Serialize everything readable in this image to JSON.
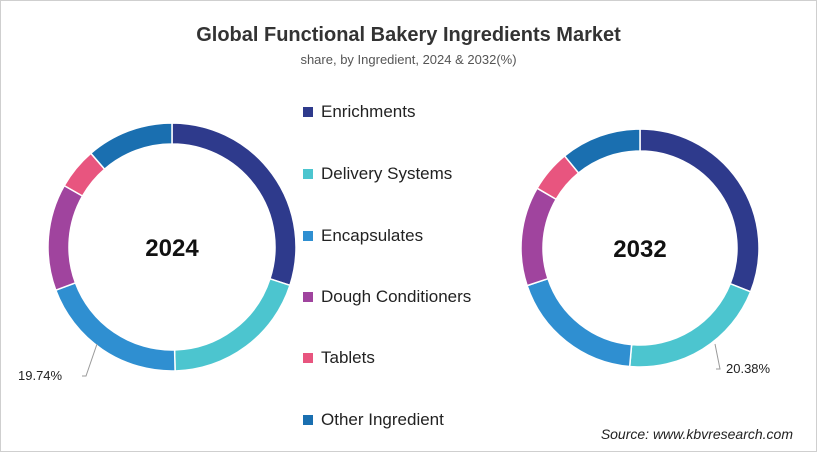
{
  "title": "Global Functional Bakery Ingredients Market",
  "subtitle": "share, by Ingredient, 2024 & 2032(%)",
  "source": "Source: www.kbvresearch.com",
  "colors": {
    "Enrichments": "#2e3a8c",
    "Delivery Systems": "#4cc5cf",
    "Encapsulates": "#2f8fd1",
    "Dough Conditioners": "#a0449e",
    "Tablets": "#e8557f",
    "Other Ingredient": "#1a6fb0"
  },
  "legend": [
    "Enrichments",
    "Delivery Systems",
    "Encapsulates",
    "Dough Conditioners",
    "Tablets",
    "Other Ingredient"
  ],
  "chart_data": [
    {
      "type": "pie",
      "variant": "donut",
      "title": "2024",
      "categories": [
        "Enrichments",
        "Delivery Systems",
        "Encapsulates",
        "Dough Conditioners",
        "Tablets",
        "Other Ingredient"
      ],
      "values": [
        30.0,
        19.6,
        19.74,
        13.9,
        5.4,
        11.36
      ],
      "annotation": "19.74%"
    },
    {
      "type": "pie",
      "variant": "donut",
      "title": "2032",
      "categories": [
        "Enrichments",
        "Delivery Systems",
        "Encapsulates",
        "Dough Conditioners",
        "Tablets",
        "Other Ingredient"
      ],
      "values": [
        31.0,
        20.38,
        18.5,
        13.5,
        5.7,
        10.92
      ],
      "annotation": "20.38%"
    }
  ]
}
